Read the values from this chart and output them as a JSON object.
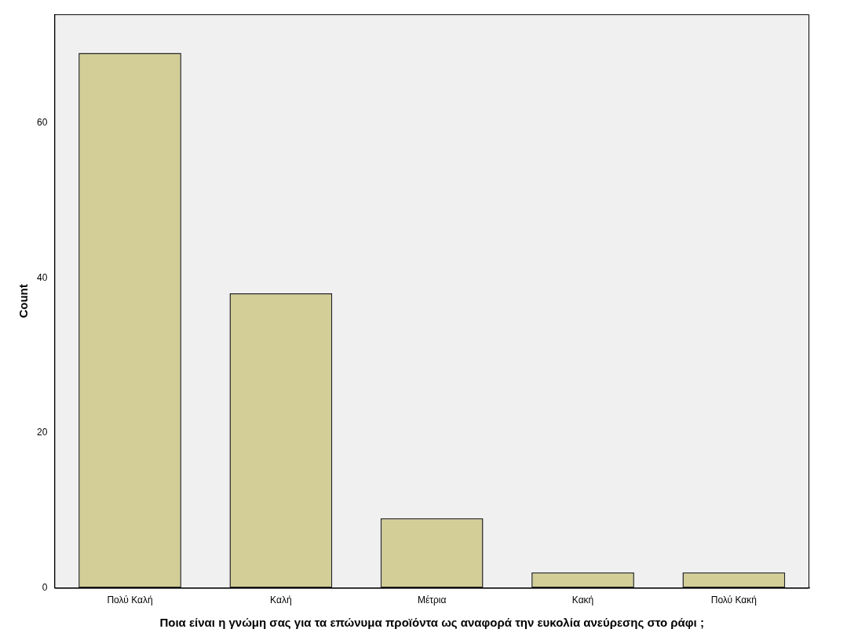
{
  "chart_data": {
    "type": "bar",
    "xlabel": "Ποια είναι η γνώμη σας για τα επώνυμα προϊόντα ως αναφορά την ευκολία ανεύρεσης στο ράφι ;",
    "ylabel": "Count",
    "categories": [
      "Πολύ Καλή",
      "Καλή",
      "Μέτρια",
      "Κακή",
      "Πολύ Κακή"
    ],
    "values": [
      69,
      38,
      9,
      2,
      2
    ],
    "color": "#d3ce97",
    "ylim": [
      0,
      74
    ],
    "yticks": [
      0,
      20,
      40,
      60
    ],
    "grid": false
  }
}
